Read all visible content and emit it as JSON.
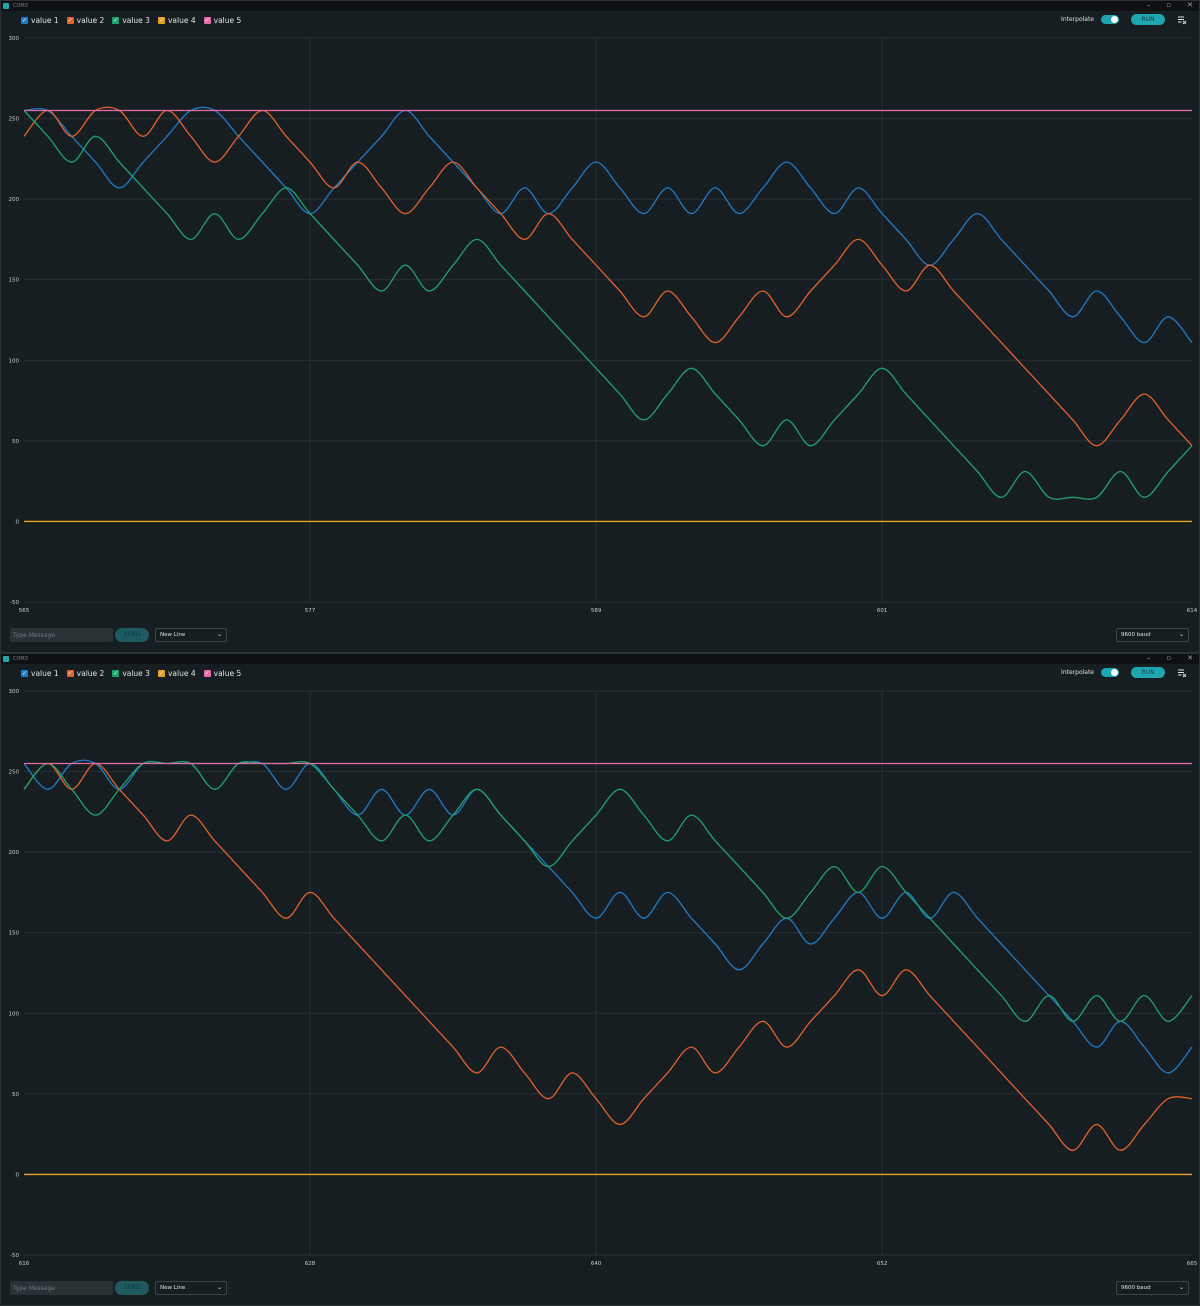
{
  "windows": [
    {
      "title": "COM3",
      "controls": [
        "–",
        "▫",
        "✕"
      ],
      "legend": [
        {
          "label": "value 1",
          "color": "#1f7bc5"
        },
        {
          "label": "value 2",
          "color": "#e0622c"
        },
        {
          "label": "value 3",
          "color": "#1ea36d"
        },
        {
          "label": "value 4",
          "color": "#e6a020"
        },
        {
          "label": "value 5",
          "color": "#e56ba8"
        }
      ],
      "interpolate_label": "Interpolate",
      "interpolate_on": true,
      "run_label": "RUN",
      "clear_icon": "clear-output-icon",
      "message_placeholder": "Type Message",
      "send_label": "SEND",
      "line_ending": "New Line",
      "baud": "9600 baud",
      "chart_data": {
        "type": "line",
        "x_range": [
          565,
          614
        ],
        "x_ticks": [
          "565",
          "577",
          "589",
          "601",
          "614"
        ],
        "y_range": [
          -50,
          300
        ],
        "y_ticks": [
          "300",
          "250",
          "200",
          "150",
          "100",
          "50",
          "0",
          "-50"
        ],
        "grid": true,
        "series": [
          {
            "name": "value 1",
            "color": "#1f7bc5",
            "x": [
              565,
              566,
              567,
              568,
              569,
              570,
              571,
              572,
              573,
              574,
              575,
              576,
              577,
              578,
              579,
              580,
              581,
              582,
              583,
              584,
              585,
              586,
              587,
              588,
              589,
              590,
              591,
              592,
              593,
              594,
              595,
              596,
              597,
              598,
              599,
              600,
              601,
              602,
              603,
              604,
              605,
              606,
              607,
              608,
              609,
              610,
              611,
              612,
              613,
              614
            ],
            "values": [
              255,
              255,
              239,
              223,
              207,
              223,
              239,
              255,
              255,
              239,
              223,
              207,
              191,
              207,
              223,
              239,
              255,
              239,
              223,
              207,
              191,
              207,
              191,
              207,
              223,
              207,
              191,
              207,
              191,
              207,
              191,
              207,
              223,
              207,
              191,
              207,
              191,
              175,
              159,
              175,
              191,
              175,
              159,
              143,
              127,
              143,
              127,
              111,
              127,
              111
            ]
          },
          {
            "name": "value 2",
            "color": "#e0622c",
            "x": [
              565,
              566,
              567,
              568,
              569,
              570,
              571,
              572,
              573,
              574,
              575,
              576,
              577,
              578,
              579,
              580,
              581,
              582,
              583,
              584,
              585,
              586,
              587,
              588,
              589,
              590,
              591,
              592,
              593,
              594,
              595,
              596,
              597,
              598,
              599,
              600,
              601,
              602,
              603,
              604,
              605,
              606,
              607,
              608,
              609,
              610,
              611,
              612,
              613,
              614
            ],
            "values": [
              239,
              255,
              239,
              255,
              255,
              239,
              255,
              239,
              223,
              239,
              255,
              239,
              223,
              207,
              223,
              207,
              191,
              207,
              223,
              207,
              191,
              175,
              191,
              175,
              159,
              143,
              127,
              143,
              127,
              111,
              127,
              143,
              127,
              143,
              159,
              175,
              159,
              143,
              159,
              143,
              127,
              111,
              95,
              79,
              63,
              47,
              63,
              79,
              63,
              47
            ]
          },
          {
            "name": "value 3",
            "color": "#1ea36d",
            "x": [
              565,
              566,
              567,
              568,
              569,
              570,
              571,
              572,
              573,
              574,
              575,
              576,
              577,
              578,
              579,
              580,
              581,
              582,
              583,
              584,
              585,
              586,
              587,
              588,
              589,
              590,
              591,
              592,
              593,
              594,
              595,
              596,
              597,
              598,
              599,
              600,
              601,
              602,
              603,
              604,
              605,
              606,
              607,
              608,
              609,
              610,
              611,
              612,
              613,
              614
            ],
            "values": [
              255,
              239,
              223,
              239,
              223,
              207,
              191,
              175,
              191,
              175,
              191,
              207,
              191,
              175,
              159,
              143,
              159,
              143,
              159,
              175,
              159,
              143,
              127,
              111,
              95,
              79,
              63,
              79,
              95,
              79,
              63,
              47,
              63,
              47,
              63,
              79,
              95,
              79,
              63,
              47,
              31,
              15,
              31,
              15,
              15,
              15,
              31,
              15,
              31,
              47
            ]
          },
          {
            "name": "value 4",
            "color": "#e6a020",
            "x": [
              565,
              614
            ],
            "values": [
              0,
              0
            ]
          },
          {
            "name": "value 5",
            "color": "#e56ba8",
            "x": [
              565,
              614
            ],
            "values": [
              255,
              255
            ]
          }
        ]
      }
    },
    {
      "title": "COM3",
      "controls": [
        "–",
        "▫",
        "✕"
      ],
      "legend": [
        {
          "label": "value 1",
          "color": "#1f7bc5"
        },
        {
          "label": "value 2",
          "color": "#e0622c"
        },
        {
          "label": "value 3",
          "color": "#1ea36d"
        },
        {
          "label": "value 4",
          "color": "#e6a020"
        },
        {
          "label": "value 5",
          "color": "#e56ba8"
        }
      ],
      "interpolate_label": "Interpolate",
      "interpolate_on": true,
      "run_label": "RUN",
      "clear_icon": "clear-output-icon",
      "message_placeholder": "Type Message",
      "send_label": "SEND",
      "line_ending": "New Line",
      "baud": "9600 baud",
      "chart_data": {
        "type": "line",
        "x_range": [
          616,
          665
        ],
        "x_ticks": [
          "616",
          "628",
          "640",
          "652",
          "665"
        ],
        "y_range": [
          -50,
          300
        ],
        "y_ticks": [
          "300",
          "250",
          "200",
          "150",
          "100",
          "50",
          "0",
          "-50"
        ],
        "grid": true,
        "series": [
          {
            "name": "value 1",
            "color": "#1f7bc5",
            "x": [
              616,
              617,
              618,
              619,
              620,
              621,
              622,
              623,
              624,
              625,
              626,
              627,
              628,
              629,
              630,
              631,
              632,
              633,
              634,
              635,
              636,
              637,
              638,
              639,
              640,
              641,
              642,
              643,
              644,
              645,
              646,
              647,
              648,
              649,
              650,
              651,
              652,
              653,
              654,
              655,
              656,
              657,
              658,
              659,
              660,
              661,
              662,
              663,
              664,
              665
            ],
            "values": [
              255,
              239,
              255,
              255,
              239,
              255,
              255,
              255,
              255,
              255,
              255,
              239,
              255,
              239,
              223,
              239,
              223,
              239,
              223,
              239,
              223,
              207,
              191,
              175,
              159,
              175,
              159,
              175,
              159,
              143,
              127,
              143,
              159,
              143,
              159,
              175,
              159,
              175,
              159,
              175,
              159,
              143,
              127,
              111,
              95,
              79,
              95,
              79,
              63,
              79
            ]
          },
          {
            "name": "value 2",
            "color": "#e0622c",
            "x": [
              616,
              617,
              618,
              619,
              620,
              621,
              622,
              623,
              624,
              625,
              626,
              627,
              628,
              629,
              630,
              631,
              632,
              633,
              634,
              635,
              636,
              637,
              638,
              639,
              640,
              641,
              642,
              643,
              644,
              645,
              646,
              647,
              648,
              649,
              650,
              651,
              652,
              653,
              654,
              655,
              656,
              657,
              658,
              659,
              660,
              661,
              662,
              663,
              664,
              665
            ],
            "values": [
              239,
              255,
              239,
              255,
              239,
              223,
              207,
              223,
              207,
              191,
              175,
              159,
              175,
              159,
              143,
              127,
              111,
              95,
              79,
              63,
              79,
              63,
              47,
              63,
              47,
              31,
              47,
              63,
              79,
              63,
              79,
              95,
              79,
              95,
              111,
              127,
              111,
              127,
              111,
              95,
              79,
              63,
              47,
              31,
              15,
              31,
              15,
              31,
              47,
              47
            ]
          },
          {
            "name": "value 3",
            "color": "#1ea36d",
            "x": [
              616,
              617,
              618,
              619,
              620,
              621,
              622,
              623,
              624,
              625,
              626,
              627,
              628,
              629,
              630,
              631,
              632,
              633,
              634,
              635,
              636,
              637,
              638,
              639,
              640,
              641,
              642,
              643,
              644,
              645,
              646,
              647,
              648,
              649,
              650,
              651,
              652,
              653,
              654,
              655,
              656,
              657,
              658,
              659,
              660,
              661,
              662,
              663,
              664,
              665
            ],
            "values": [
              239,
              255,
              239,
              223,
              239,
              255,
              255,
              255,
              239,
              255,
              255,
              255,
              255,
              239,
              223,
              207,
              223,
              207,
              223,
              239,
              223,
              207,
              191,
              207,
              223,
              239,
              223,
              207,
              223,
              207,
              191,
              175,
              159,
              175,
              191,
              175,
              191,
              175,
              159,
              143,
              127,
              111,
              95,
              111,
              95,
              111,
              95,
              111,
              95,
              111
            ]
          },
          {
            "name": "value 4",
            "color": "#e6a020",
            "x": [
              616,
              665
            ],
            "values": [
              0,
              0
            ]
          },
          {
            "name": "value 5",
            "color": "#e56ba8",
            "x": [
              616,
              665
            ],
            "values": [
              255,
              255
            ]
          }
        ]
      }
    }
  ]
}
